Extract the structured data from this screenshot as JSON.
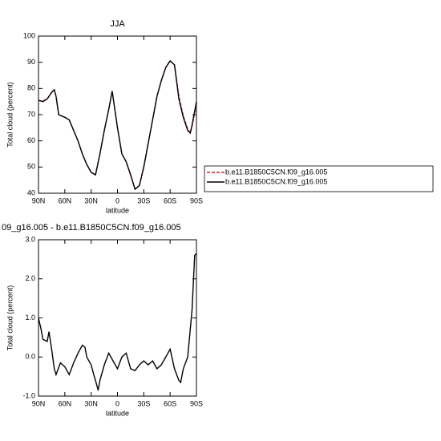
{
  "chart_data": [
    {
      "type": "line",
      "title": "JJA",
      "xlabel": "latitude",
      "ylabel": "Total cloud (percent)",
      "x": [
        90,
        85,
        80,
        75,
        72,
        70,
        67,
        60,
        55,
        50,
        45,
        40,
        35,
        30,
        25,
        20,
        15,
        10,
        6,
        0,
        -5,
        -10,
        -15,
        -20,
        -25,
        -30,
        -35,
        -40,
        -45,
        -50,
        -55,
        -60,
        -65,
        -70,
        -75,
        -80,
        -83,
        -85,
        -90
      ],
      "series": [
        {
          "name": "b.e11.B1850C5CN.f09_g16.005",
          "color": "#e0201b",
          "dash": true,
          "values": [
            75.3,
            75.2,
            76,
            78.5,
            79.5,
            77,
            70,
            69,
            68,
            64,
            60,
            55,
            51,
            48,
            47,
            55,
            64,
            72,
            79,
            65,
            55,
            52,
            47,
            41.5,
            43,
            50,
            59,
            68,
            77,
            83,
            88,
            90.6,
            89,
            77,
            69.5,
            64.5,
            63,
            65.5,
            74
          ]
        },
        {
          "name": "b.e11.B1850C5CN.f09_g16.005",
          "color": "#000000",
          "dash": false,
          "values": [
            75.5,
            75,
            76,
            78.5,
            79.5,
            77,
            70,
            69,
            68,
            64,
            60,
            55,
            51,
            48,
            47,
            55,
            64,
            72,
            79,
            65,
            55,
            52,
            47,
            41.5,
            43,
            50,
            59,
            68,
            77,
            83,
            88,
            90.5,
            89,
            76,
            69,
            64,
            63,
            66,
            75
          ]
        }
      ],
      "xlim": [
        90,
        -90
      ],
      "xticks": [
        {
          "value": 90,
          "label": "90N"
        },
        {
          "value": 60,
          "label": "60N"
        },
        {
          "value": 30,
          "label": "30N"
        },
        0,
        {
          "value": -30,
          "label": "30S"
        },
        {
          "value": -60,
          "label": "60S"
        },
        {
          "value": -90,
          "label": "90S"
        }
      ],
      "ylim": [
        40,
        100
      ],
      "yticks": [
        40,
        50,
        60,
        70,
        80,
        90,
        100
      ],
      "legend": "right"
    },
    {
      "type": "line",
      "title": "09_g16.005 - b.e11.B1850C5CN.f09_g16.005",
      "xlabel": "latitude",
      "ylabel": "Total cloud (percent)",
      "x": [
        90,
        87,
        85,
        80,
        78,
        75,
        72,
        70,
        65,
        60,
        55,
        50,
        45,
        40,
        37,
        35,
        30,
        27,
        25,
        22,
        20,
        15,
        10,
        5,
        0,
        -5,
        -10,
        -15,
        -20,
        -25,
        -30,
        -35,
        -40,
        -45,
        -50,
        -55,
        -60,
        -65,
        -70,
        -72,
        -75,
        -80,
        -85,
        -88,
        -90
      ],
      "series": [
        {
          "color": "#000000",
          "dash": false,
          "values": [
            1.0,
            0.7,
            0.45,
            0.4,
            0.65,
            0.2,
            -0.3,
            -0.45,
            -0.15,
            -0.25,
            -0.45,
            -0.15,
            0.1,
            0.3,
            0.25,
            0.0,
            -0.2,
            -0.45,
            -0.6,
            -0.85,
            -0.6,
            -0.2,
            0.1,
            -0.1,
            -0.3,
            0.0,
            0.1,
            -0.3,
            -0.35,
            -0.2,
            -0.1,
            -0.2,
            -0.1,
            -0.3,
            -0.2,
            0.0,
            0.2,
            -0.3,
            -0.6,
            -0.65,
            -0.3,
            0.0,
            1.2,
            2.6,
            2.65
          ]
        }
      ],
      "xlim": [
        90,
        -90
      ],
      "xticks": [
        {
          "value": 90,
          "label": "90N"
        },
        {
          "value": 60,
          "label": "60N"
        },
        {
          "value": 30,
          "label": "30N"
        },
        0,
        {
          "value": -30,
          "label": "30S"
        },
        {
          "value": -60,
          "label": "60S"
        },
        {
          "value": -90,
          "label": "90S"
        }
      ],
      "ylim": [
        -1,
        3
      ],
      "yticks": [
        {
          "value": -1,
          "label": "-1.0"
        },
        {
          "value": 0,
          "label": "0.0"
        },
        {
          "value": 1,
          "label": "1.0"
        },
        {
          "value": 2,
          "label": "2.0"
        },
        {
          "value": 3,
          "label": "3.0"
        }
      ]
    }
  ]
}
